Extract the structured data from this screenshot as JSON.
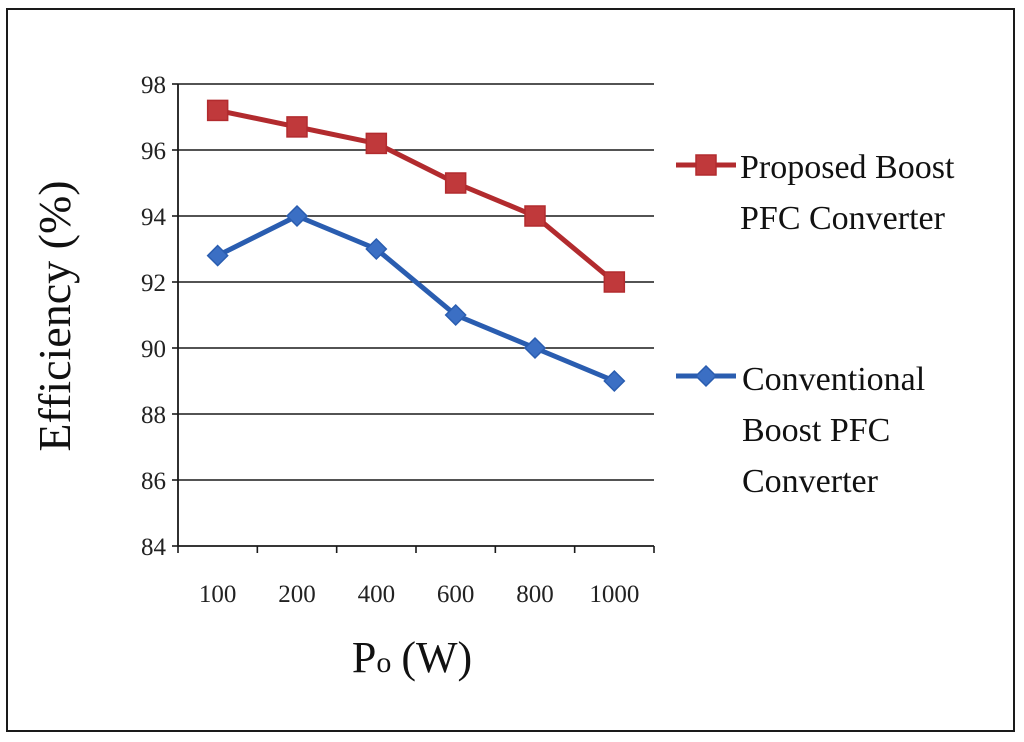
{
  "chart_data": {
    "type": "line",
    "title": "",
    "xlabel": "P",
    "xlabel_sub": "o",
    "xlabel_unit": "(W)",
    "ylabel": "Efficiency (%)",
    "categories": [
      "100",
      "200",
      "400",
      "600",
      "800",
      "1000"
    ],
    "ylim": [
      84,
      98
    ],
    "yticks": [
      84,
      86,
      88,
      90,
      92,
      94,
      96,
      98
    ],
    "ytick_labels": [
      "84",
      "86",
      "88",
      "90",
      "92",
      "94",
      "96",
      "98"
    ],
    "grid": true,
    "legend_position": "right",
    "series": [
      {
        "name": "Proposed Boost PFC Converter",
        "legend_lines": [
          "Proposed Boost",
          "PFC Converter"
        ],
        "marker": "square",
        "color": "#b22b2e",
        "fill": "#c0393b",
        "values": [
          97.2,
          96.7,
          96.2,
          95.0,
          94.0,
          92.0
        ]
      },
      {
        "name": "Conventional Boost PFC Converter",
        "legend_lines": [
          "Conventional",
          "Boost PFC",
          "Converter"
        ],
        "marker": "diamond",
        "color": "#2a5db0",
        "fill": "#3b6fc4",
        "values": [
          92.8,
          94.0,
          93.0,
          91.0,
          90.0,
          89.0
        ]
      }
    ]
  }
}
